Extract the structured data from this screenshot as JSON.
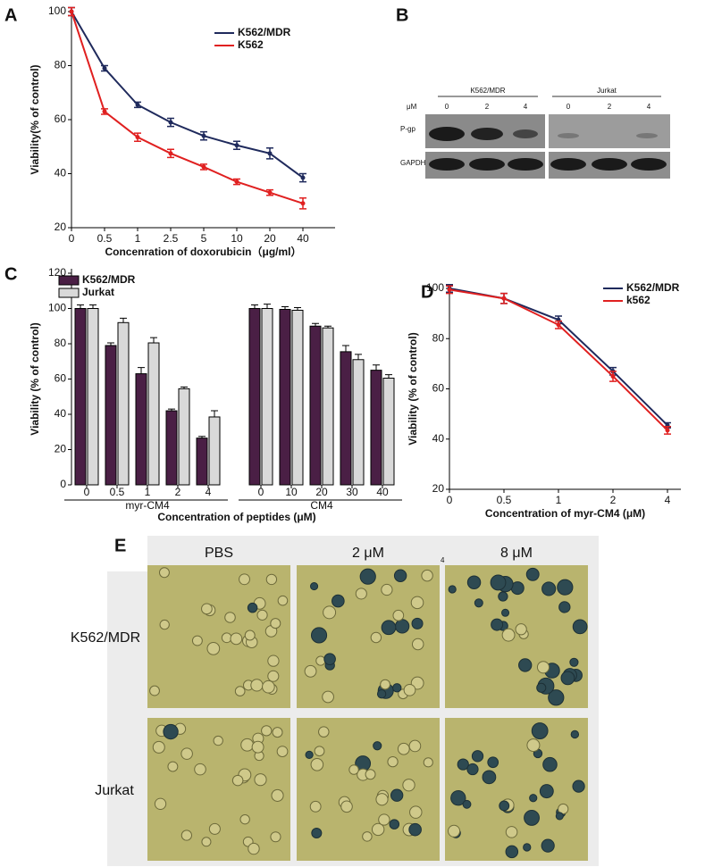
{
  "chart_data": [
    {
      "type": "line",
      "panel": "A",
      "x_label": "Concenration of doxorubicin（μg/ml）",
      "y_label": "Viability(% of control)",
      "categories": [
        "0",
        "0.5",
        "1",
        "2.5",
        "5",
        "10",
        "20",
        "40"
      ],
      "series": [
        {
          "name": "K562/MDR",
          "color": "#1f2a5c",
          "values": [
            100,
            79,
            65.5,
            59,
            54,
            50.5,
            47.5,
            38.5
          ],
          "errors": [
            1.5,
            1,
            1,
            1.5,
            1.5,
            1.5,
            2,
            1.5
          ]
        },
        {
          "name": "K562",
          "color": "#e02020",
          "values": [
            100,
            63,
            53.5,
            47.5,
            42.5,
            37,
            33,
            29
          ],
          "errors": [
            1.5,
            1,
            1.5,
            1.5,
            1,
            1,
            1,
            2
          ]
        }
      ],
      "ylim": [
        20,
        100
      ],
      "yticks": [
        20,
        40,
        60,
        80,
        100
      ],
      "legend": "upper right"
    },
    {
      "type": "bar",
      "panel": "C",
      "x_label": "Concentration of peptides (μM)",
      "y_label": "Viability (% of control)",
      "groups": [
        {
          "label": "myr-CM4",
          "categories": [
            "0",
            "0.5",
            "1",
            "2",
            "4"
          ]
        },
        {
          "label": "CM4",
          "categories": [
            "0",
            "10",
            "20",
            "30",
            "40"
          ]
        }
      ],
      "series": [
        {
          "name": "K562/MDR",
          "color": "#4a1f45",
          "values": [
            100,
            79,
            63,
            42,
            26.5,
            100,
            99.5,
            90,
            75.5,
            65
          ],
          "errors": [
            2,
            1.5,
            3.5,
            1,
            1,
            2,
            1.5,
            1.5,
            3.5,
            3
          ]
        },
        {
          "name": "Jurkat",
          "color": "#d9d9d9",
          "values": [
            100,
            92,
            80.5,
            54.5,
            38.5,
            100,
            99,
            89,
            71,
            60.5
          ],
          "errors": [
            2,
            2.5,
            3,
            1,
            3.5,
            2.5,
            1.5,
            1,
            3,
            2
          ]
        }
      ],
      "ylim": [
        0,
        120
      ],
      "yticks": [
        0,
        20,
        40,
        60,
        80,
        100,
        120
      ],
      "legend": "upper left"
    },
    {
      "type": "line",
      "panel": "D",
      "x_label": "Concentration of myr-CM4 (μM)",
      "y_label": "Viability (% of control)",
      "categories": [
        "0",
        "0.5",
        "1",
        "2",
        "4"
      ],
      "series": [
        {
          "name": "K562/MDR",
          "color": "#1f2a5c",
          "values": [
            100,
            96,
            87.5,
            67,
            45.5
          ],
          "errors": [
            1.5,
            2,
            1.5,
            1.5,
            1
          ]
        },
        {
          "name": "k562",
          "color": "#e02020",
          "values": [
            99.5,
            96,
            85.5,
            65,
            43.5
          ],
          "errors": [
            1.5,
            2,
            1.5,
            2,
            1.5
          ]
        }
      ],
      "ylim": [
        20,
        100
      ],
      "yticks": [
        20,
        40,
        60,
        80,
        100
      ],
      "legend": "upper right"
    }
  ],
  "blot": {
    "label": "B",
    "unit": "μM",
    "groups": [
      {
        "name": "K562/MDR",
        "doses": [
          "0",
          "2",
          "4"
        ]
      },
      {
        "name": "Jurkat",
        "doses": [
          "0",
          "2",
          "4"
        ]
      }
    ],
    "rows": [
      "P-gp",
      "GAPDH"
    ]
  },
  "micrographs": {
    "label": "E",
    "columns": [
      "PBS",
      "2 μM",
      "8 μM"
    ],
    "rows": [
      "K562/MDR",
      "Jurkat"
    ],
    "marker": "4"
  }
}
